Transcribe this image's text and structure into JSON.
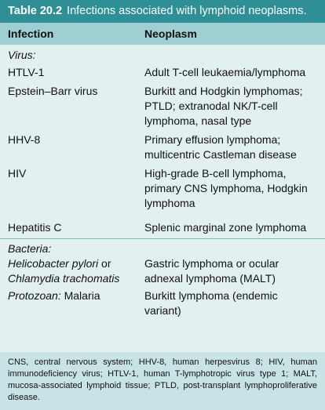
{
  "title": {
    "number": "Table 20.2",
    "text": "Infections associated with lymphoid neoplasms."
  },
  "headers": {
    "infection": "Infection",
    "neoplasm": "Neoplasm"
  },
  "sections": {
    "virus_label": "Virus:",
    "bacteria_label": "Bacteria:",
    "protozoan_label": "Protozoan:"
  },
  "rows": {
    "htlv": {
      "infection": "HTLV-1",
      "neoplasm": "Adult T-cell leukaemia/lymphoma"
    },
    "ebv": {
      "infection": "Epstein–Barr virus",
      "neoplasm_lines": [
        "Burkitt and Hodgkin lymphomas;",
        "PTLD; extranodal NK/T-cell",
        "lymphoma, nasal type"
      ]
    },
    "hhv8": {
      "infection": "HHV-8",
      "neoplasm_lines": [
        "Primary effusion lymphoma;",
        "multicentric Castleman disease"
      ]
    },
    "hiv": {
      "infection": "HIV",
      "neoplasm_lines": [
        "High-grade B-cell lymphoma,",
        "primary CNS lymphoma, Hodgkin",
        "lymphoma"
      ]
    },
    "hepc": {
      "infection": "Hepatitis C",
      "neoplasm": "Splenic marginal zone lymphoma"
    },
    "hpylori": {
      "infection_line1": "Helicobacter pylori",
      "infection_or": " or",
      "infection_line2": "Chlamydia trachomatis",
      "neoplasm_lines": [
        "Gastric lymphoma or ocular",
        "adnexal lymphoma (MALT)"
      ]
    },
    "malaria": {
      "infection": " Malaria",
      "neoplasm_lines": [
        "Burkitt lymphoma (endemic",
        "variant)"
      ]
    }
  },
  "footnote": "CNS, central nervous system; HHV-8, human herpesvirus 8; HIV, human immunodeficiency virus; HTLV-1, human T-lymphotropic virus type 1; MALT, mucosa-associated lymphoid tissue; PTLD, post-transplant lymphoproliferative disease."
}
